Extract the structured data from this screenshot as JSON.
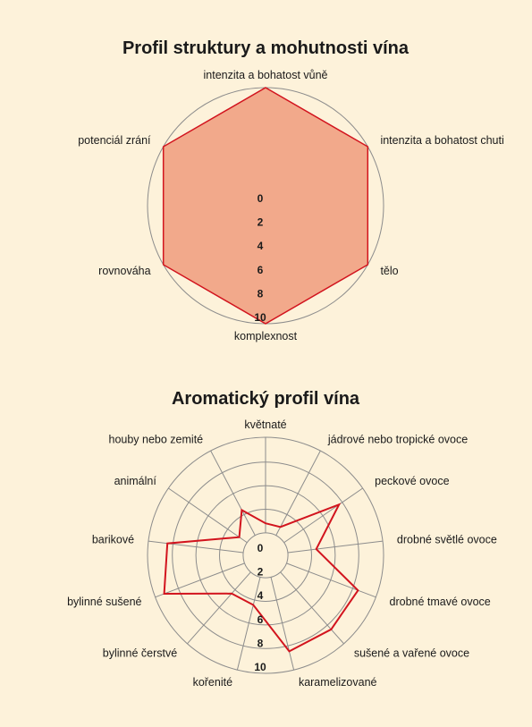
{
  "chart_data": [
    {
      "type": "radar",
      "title": "Profil struktury a mohutnosti vína",
      "axes": [
        "intenzita a bohatost vůně",
        "intenzita a bohatost chuti",
        "tělo",
        "komplexnost",
        "rovnováha",
        "potenciál zrání"
      ],
      "values": [
        10,
        10,
        10,
        10,
        10,
        10
      ],
      "rlim": [
        0,
        10
      ],
      "ticks": [
        "0",
        "2",
        "4",
        "6",
        "8",
        "10"
      ],
      "fill": "#f2a98b",
      "stroke": "#d2141e",
      "grid": true
    },
    {
      "type": "radar",
      "title": "Aromatický profil vína",
      "axes": [
        "květnaté",
        "jádrové nebo tropické ovoce",
        "peckové ovoce",
        "drobné světlé ovoce",
        "drobné tmavé ovoce",
        "sušené a vařené ovoce",
        "karamelizované",
        "kořenité",
        "bylinné čerstvé",
        "bylinné sušené",
        "barikové",
        "animální",
        "houby nebo zemité"
      ],
      "values": [
        1,
        1,
        7,
        3,
        8,
        8,
        8,
        3,
        3,
        9,
        8,
        1,
        3
      ],
      "rlim": [
        0,
        10
      ],
      "ticks": [
        "0",
        "2",
        "4",
        "6",
        "8",
        "10"
      ],
      "fill": "none",
      "stroke": "#d2141e",
      "grid": true
    }
  ]
}
